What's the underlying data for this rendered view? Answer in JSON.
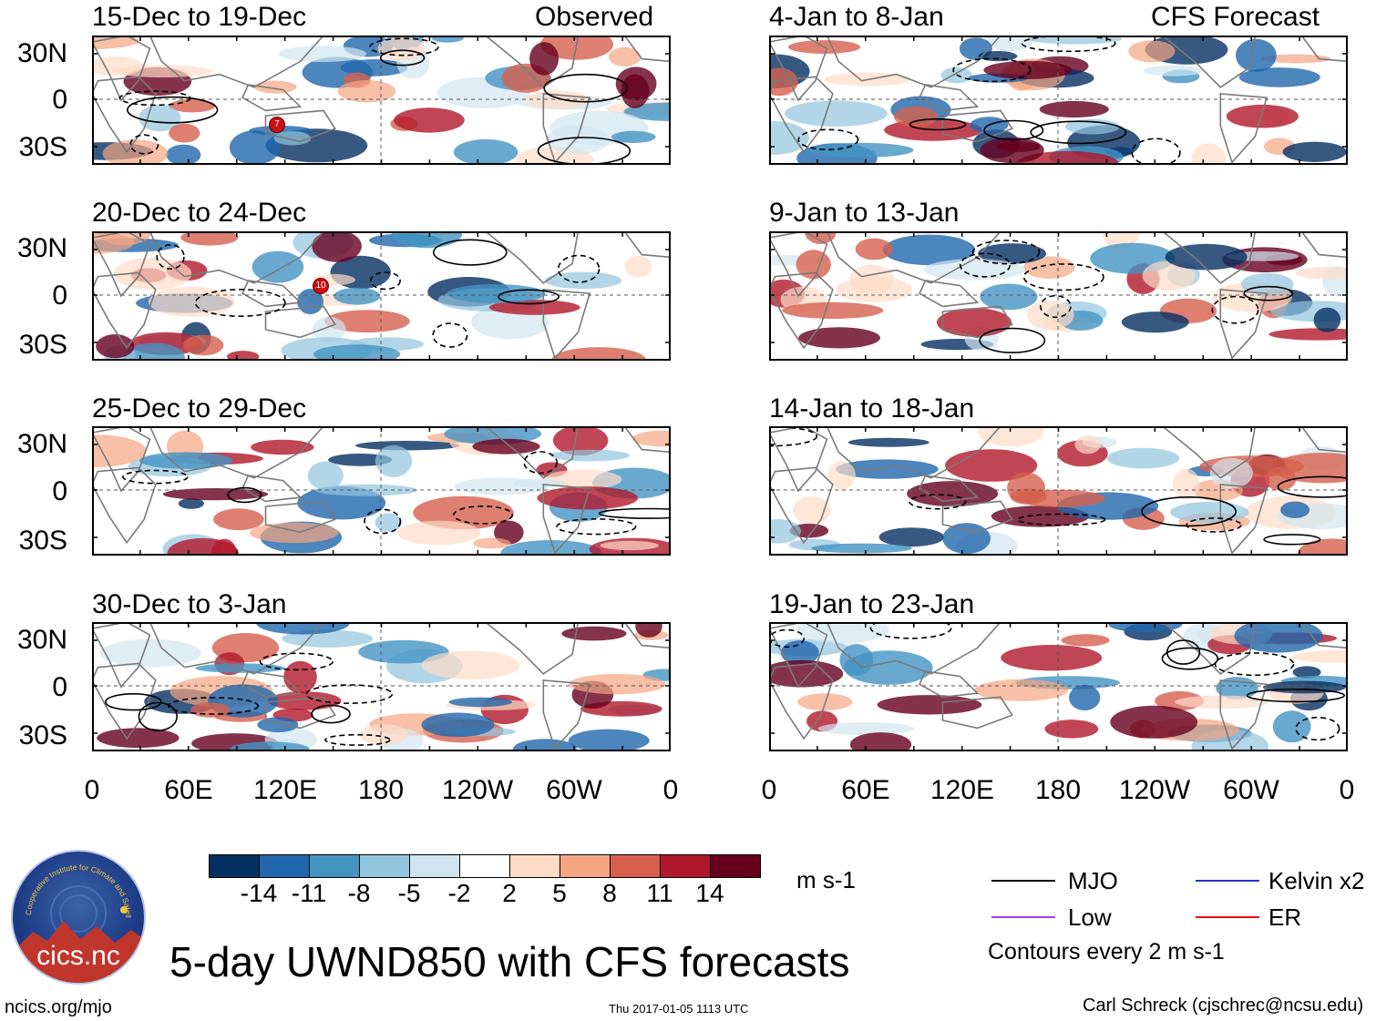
{
  "observed_label": "Observed",
  "forecast_label": "CFS Forecast",
  "panels_left": [
    "15-Dec to 19-Dec",
    "20-Dec to 24-Dec",
    "25-Dec to 29-Dec",
    "30-Dec to 3-Jan"
  ],
  "panels_right": [
    "4-Jan to 8-Jan",
    "9-Jan to 13-Jan",
    "14-Jan to 18-Jan",
    "19-Jan to 23-Jan"
  ],
  "lat_labels": [
    "30N",
    "0",
    "30S"
  ],
  "lon_labels": [
    "0",
    "60E",
    "120E",
    "180",
    "120W",
    "60W",
    "0"
  ],
  "colorbar": {
    "colors": [
      "#053061",
      "#2166ac",
      "#4393c3",
      "#92c5de",
      "#d1e5f0",
      "#ffffff",
      "#fddbc7",
      "#f4a582",
      "#d6604d",
      "#b2182b",
      "#67001f"
    ],
    "ticks": [
      "-14",
      "-11",
      "-8",
      "-5",
      "-2",
      "2",
      "5",
      "8",
      "11",
      "14"
    ],
    "units": "m s-1"
  },
  "legend": {
    "mjo": "MJO",
    "kelvin": "Kelvin x2",
    "low": "Low",
    "er": "ER",
    "mjo_color": "#000000",
    "kelvin_color": "#2233cc",
    "low_color": "#a040e0",
    "er_color": "#dd1111",
    "contours_note": "Contours every 2 m s-1"
  },
  "logo_text": "cics.nc",
  "logo_ring_text": "Cooperative Institute for Climate and Satellites",
  "title": "5-day UWND850 with CFS forecasts",
  "footer": {
    "left": "ncics.org/mjo",
    "center": "Thu 2017-01-05 1113 UTC",
    "right": "Carl Schreck (cjschrec@ncsu.edu)"
  },
  "storm_labels": [
    "7",
    "10"
  ]
}
